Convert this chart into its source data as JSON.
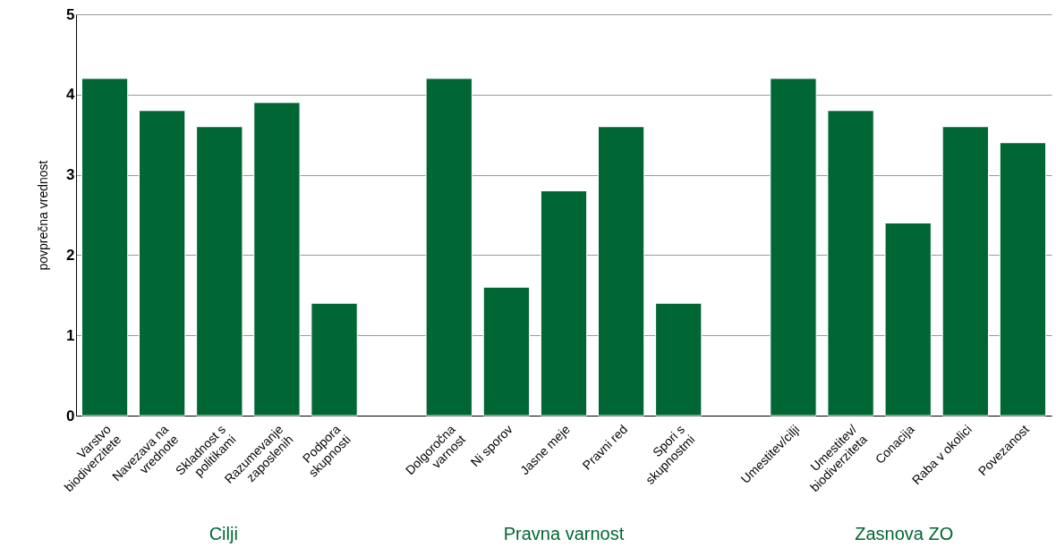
{
  "chart_data": {
    "type": "bar",
    "ylabel": "povprečna vrednost",
    "categories": [
      "Varstvo\nbiodiverzitete",
      "Navezava na\nvrednote",
      "Skladnost s\npolitikami",
      "Razumevanje\nzaposlenih",
      "Podpora\nskupnosti",
      null,
      "Dolgoročna\nvarnost",
      "Ni sporov",
      "Jasne meje",
      "Pravni red",
      "Spori s\nskupnostmi",
      null,
      "Umestitev/cilji",
      "Umestitev/\nbiodiverziteta",
      "Conacija",
      "Raba v okolici",
      "Povezanost"
    ],
    "values": [
      4.2,
      3.8,
      3.6,
      3.9,
      1.4,
      null,
      4.2,
      1.6,
      2.8,
      3.6,
      1.4,
      null,
      4.2,
      3.8,
      2.4,
      3.6,
      3.4
    ],
    "color": "#006633",
    "ylim": [
      0,
      5
    ],
    "yticks": [
      0,
      1,
      2,
      3,
      4,
      5
    ],
    "grid": "y",
    "annotations": [
      "Cilji",
      "Pravna varnost",
      "Zasnova ZO"
    ]
  }
}
